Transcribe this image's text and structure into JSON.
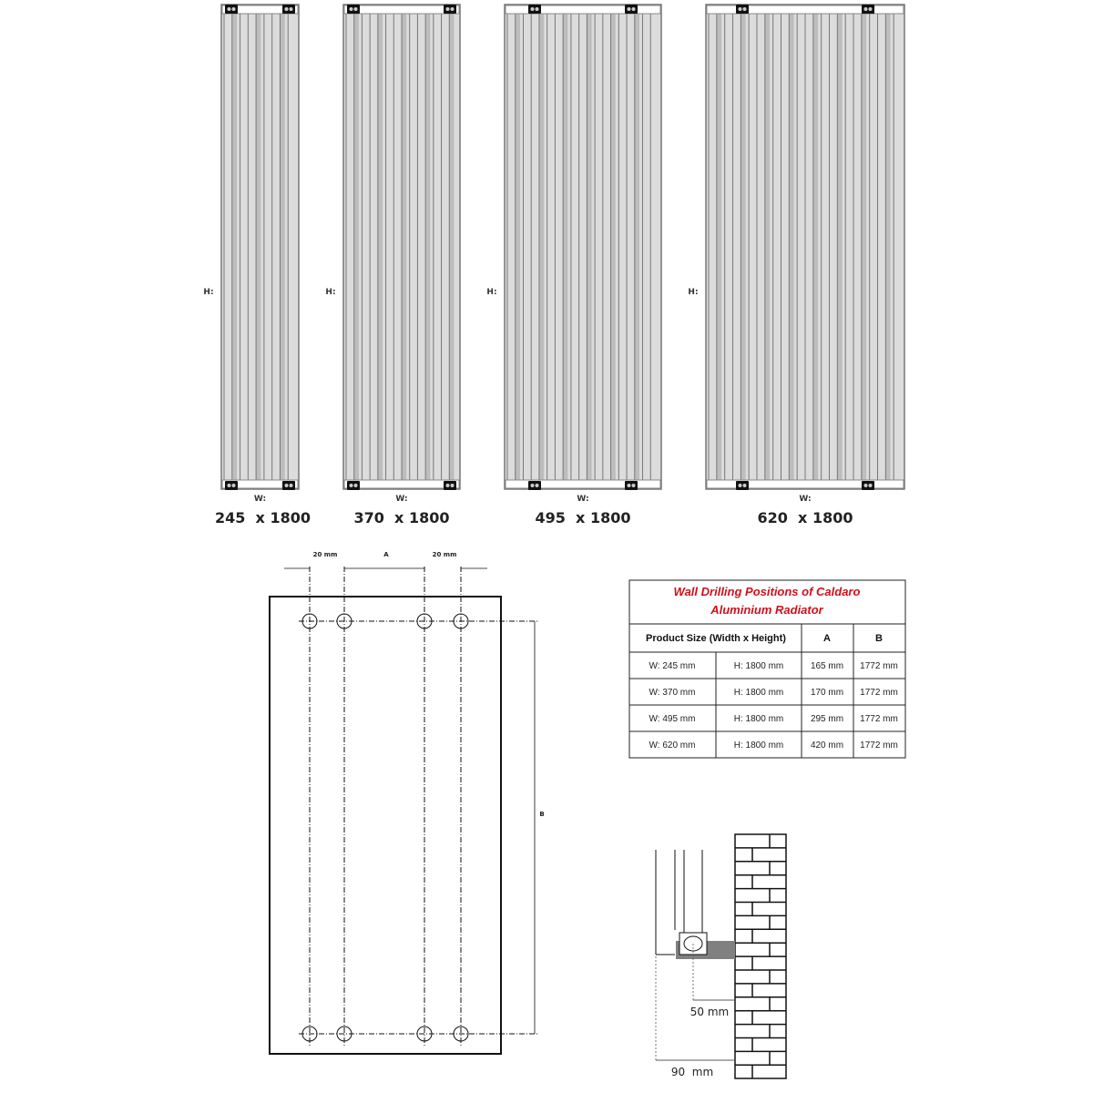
{
  "radiators": [
    {
      "h_label": "H:",
      "w_label": "W:",
      "size": "245  x 1800"
    },
    {
      "h_label": "H:",
      "w_label": "W:",
      "size": "370  x 1800"
    },
    {
      "h_label": "H:",
      "w_label": "W:",
      "size": "495  x 1800"
    },
    {
      "h_label": "H:",
      "w_label": "W:",
      "size": "620  x 1800"
    }
  ],
  "drilling": {
    "left_offset": "20 mm",
    "a_label": "A",
    "right_offset": "20 mm",
    "b_label": "B"
  },
  "table": {
    "title_line1": "Wall Drilling Positions of Caldaro",
    "title_line2": "Aluminium Radiator",
    "title_color": "#d0101c",
    "headers": [
      "Product Size (Width x Height)",
      "A",
      "B"
    ],
    "rows": [
      [
        "W: 245 mm",
        "H: 1800 mm",
        "165 mm",
        "1772 mm"
      ],
      [
        "W: 370 mm",
        "H: 1800 mm",
        "170 mm",
        "1772 mm"
      ],
      [
        "W: 495 mm",
        "H: 1800 mm",
        "295 mm",
        "1772 mm"
      ],
      [
        "W: 620 mm",
        "H: 1800 mm",
        "420 mm",
        "1772 mm"
      ]
    ]
  },
  "wall_section": {
    "bracket_distance": "50 mm",
    "total_distance": "90  mm"
  }
}
